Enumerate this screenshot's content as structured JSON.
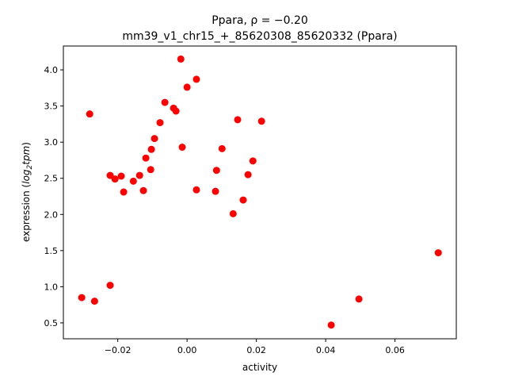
{
  "chart_data": {
    "type": "scatter",
    "title_line1": "Ppara, ρ = −0.20",
    "title_line2": "mm39_v1_chr15_+_85620308_85620332 (Ppara)",
    "xlabel": "activity",
    "ylabel_prefix": "expression (",
    "ylabel_math": "log",
    "ylabel_sub": "2",
    "ylabel_math2": "tpm",
    "ylabel_suffix": ")",
    "xlim": [
      -0.0357,
      0.0777
    ],
    "ylim": [
      0.28,
      4.33
    ],
    "xticks": [
      -0.02,
      0.0,
      0.02,
      0.04,
      0.06
    ],
    "xtick_labels": [
      "−0.02",
      "0.00",
      "0.02",
      "0.04",
      "0.06"
    ],
    "yticks": [
      0.5,
      1.0,
      1.5,
      2.0,
      2.5,
      3.0,
      3.5,
      4.0
    ],
    "ytick_labels": [
      "0.5",
      "1.0",
      "1.5",
      "2.0",
      "2.5",
      "3.0",
      "3.5",
      "4.0"
    ],
    "marker_color": "#ff0000",
    "grid": false,
    "points": [
      [
        -0.0304,
        0.85
      ],
      [
        -0.0267,
        0.8
      ],
      [
        -0.0222,
        1.02
      ],
      [
        -0.0281,
        3.39
      ],
      [
        -0.0222,
        2.54
      ],
      [
        -0.0208,
        2.49
      ],
      [
        -0.019,
        2.53
      ],
      [
        -0.0183,
        2.31
      ],
      [
        -0.0155,
        2.46
      ],
      [
        -0.0137,
        2.54
      ],
      [
        -0.0126,
        2.33
      ],
      [
        -0.0119,
        2.78
      ],
      [
        -0.0105,
        2.62
      ],
      [
        -0.0103,
        2.9
      ],
      [
        -0.0094,
        3.05
      ],
      [
        -0.0078,
        3.27
      ],
      [
        -0.0064,
        3.55
      ],
      [
        -0.0039,
        3.47
      ],
      [
        -0.0032,
        3.43
      ],
      [
        -0.0018,
        4.15
      ],
      [
        -0.0014,
        2.93
      ],
      [
        0.0,
        3.76
      ],
      [
        0.0027,
        3.87
      ],
      [
        0.0027,
        2.34
      ],
      [
        0.0082,
        2.32
      ],
      [
        0.0085,
        2.61
      ],
      [
        0.0101,
        2.91
      ],
      [
        0.0133,
        2.01
      ],
      [
        0.0146,
        3.31
      ],
      [
        0.0162,
        2.2
      ],
      [
        0.0176,
        2.55
      ],
      [
        0.019,
        2.74
      ],
      [
        0.0215,
        3.29
      ],
      [
        0.0416,
        0.47
      ],
      [
        0.0496,
        0.83
      ],
      [
        0.0725,
        1.47
      ]
    ]
  }
}
